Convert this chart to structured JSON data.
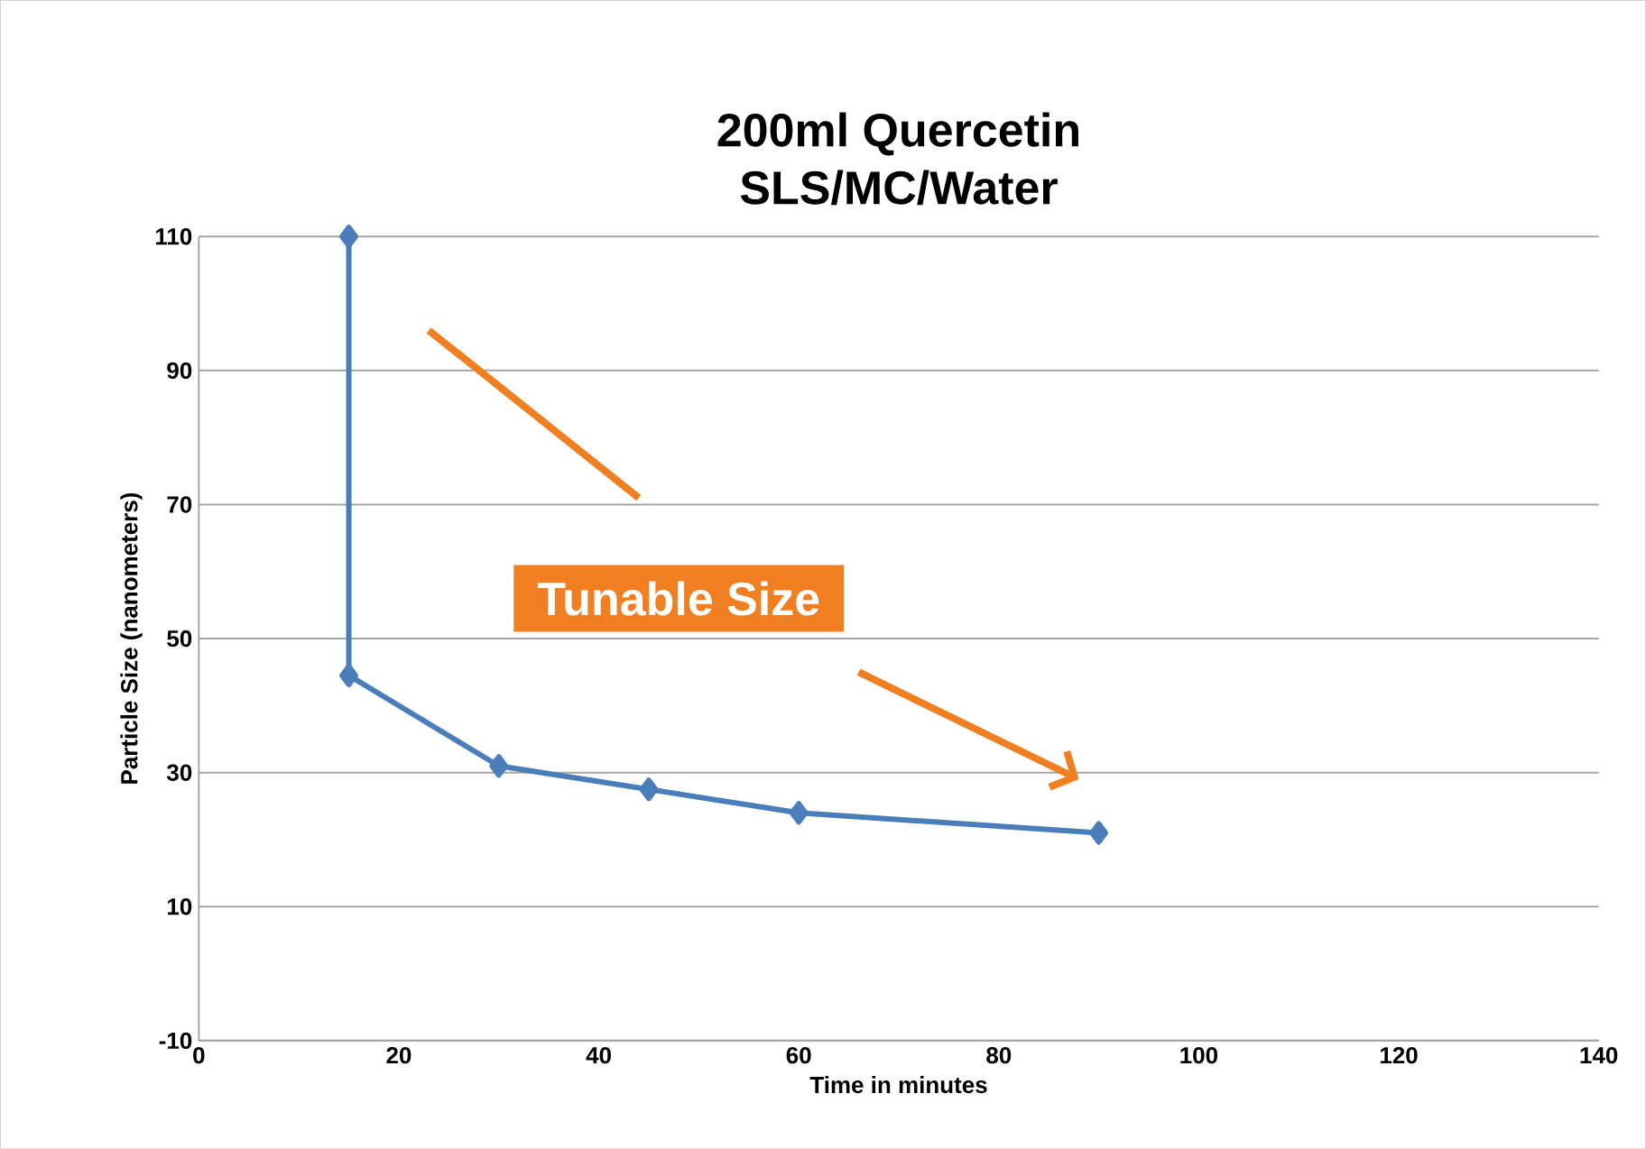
{
  "chart_data": {
    "type": "line",
    "title": "200ml Quercetin",
    "subtitle": "SLS/MC/Water",
    "xlabel": "Time in minutes",
    "ylabel": "Particle Size (nanometers)",
    "x": [
      15,
      15,
      30,
      45,
      60,
      90
    ],
    "series": [
      {
        "color": "#4a7ebb",
        "values": [
          110,
          44.5,
          31,
          27.5,
          24,
          21
        ]
      }
    ],
    "xlim": [
      0,
      140
    ],
    "xticks": [
      0,
      20,
      40,
      60,
      80,
      100,
      120,
      140
    ],
    "ylim": [
      -10,
      110
    ],
    "yticks": [
      -10,
      10,
      30,
      50,
      70,
      90,
      110
    ],
    "grid": "y",
    "marker": "diamond",
    "line_style": "solid",
    "annotations": [
      "Tunable Size"
    ]
  }
}
